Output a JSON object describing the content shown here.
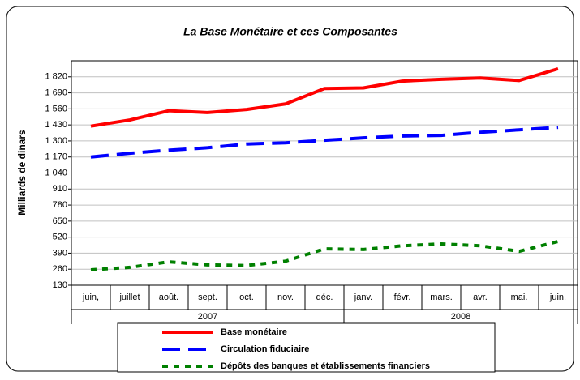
{
  "chart_data": {
    "type": "line",
    "title": "La Base Monétaire et ces Composantes",
    "y_label": "Milliards de dinars",
    "categories": [
      "juin,",
      "juillet",
      "août.",
      "sept.",
      "oct.",
      "nov.",
      "déc.",
      "janv.",
      "févr.",
      "mars.",
      "avr.",
      "mai.",
      "juin."
    ],
    "x_groups": [
      {
        "label": "2007",
        "span": 7
      },
      {
        "label": "2008",
        "span": 6
      }
    ],
    "series": [
      {
        "name": "Base monétaire",
        "color": "#ff0000",
        "dash": "solid",
        "values": [
          1420,
          1470,
          1545,
          1530,
          1555,
          1600,
          1725,
          1730,
          1785,
          1800,
          1810,
          1790,
          1885
        ]
      },
      {
        "name": "Circulation fiduciaire",
        "color": "#0000ff",
        "dash": "long",
        "values": [
          1170,
          1200,
          1225,
          1245,
          1275,
          1285,
          1305,
          1325,
          1340,
          1345,
          1370,
          1390,
          1410
        ]
      },
      {
        "name": "Dépôts des banques et établissements financiers",
        "color": "#008000",
        "dash": "short",
        "values": [
          255,
          275,
          320,
          295,
          290,
          325,
          425,
          420,
          450,
          465,
          450,
          405,
          485
        ]
      }
    ],
    "ylim": [
      130,
      1950
    ],
    "yticks": [
      130,
      260,
      390,
      520,
      650,
      780,
      910,
      {
        "value": 1040,
        "label": "1 040"
      },
      {
        "value": 1170,
        "label": "1 170"
      },
      {
        "value": 1300,
        "label": "1 300"
      },
      {
        "value": 1430,
        "label": "1 430"
      },
      {
        "value": 1560,
        "label": "1 560"
      },
      {
        "value": 1690,
        "label": "1 690"
      },
      {
        "value": 1820,
        "label": "1 820"
      }
    ],
    "grid": true
  }
}
